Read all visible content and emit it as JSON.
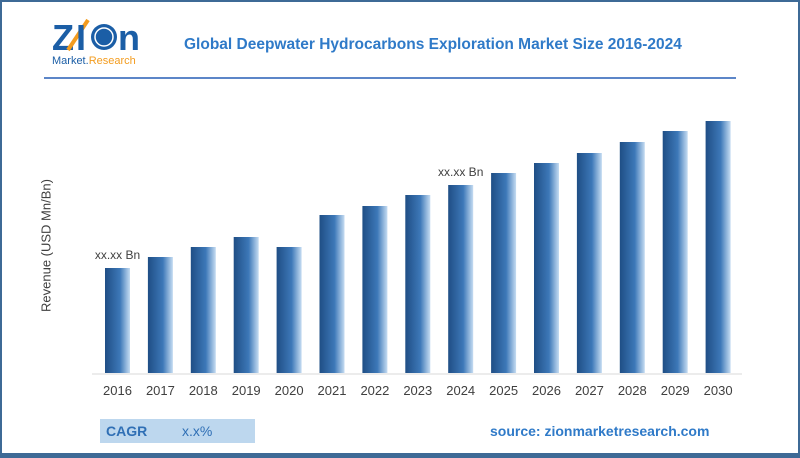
{
  "logo": {
    "text": "Zion",
    "subtext": "Market.Research"
  },
  "title": "Global Deepwater Hydrocarbons Exploration Market Size 2016-2024",
  "colors": {
    "bar_dark": "#1f4e85",
    "bar_light": "#c5dcf2",
    "title": "#2f7ac8",
    "cagr_bg": "#bdd7ee"
  },
  "chart_data": {
    "type": "bar",
    "title": "Global Deepwater Hydrocarbons Exploration Market Size 2016-2024",
    "ylabel": "Revenue (USD Mn/Bn)",
    "xlabel": "",
    "categories": [
      "2016",
      "2017",
      "2018",
      "2019",
      "2020",
      "2021",
      "2022",
      "2023",
      "2024",
      "2025",
      "2026",
      "2027",
      "2028",
      "2029",
      "2030"
    ],
    "values": [
      105,
      116,
      126,
      136,
      126,
      158,
      167,
      178,
      188,
      200,
      210,
      220,
      231,
      242,
      252
    ],
    "annotations": [
      {
        "category": "2016",
        "text": "xx.xx Bn"
      },
      {
        "category": "2024",
        "text": "xx.xx Bn"
      }
    ],
    "grid": false
  },
  "cagr": {
    "label": "CAGR",
    "value": "x.x%"
  },
  "source": "source: zionmarketresearch.com"
}
